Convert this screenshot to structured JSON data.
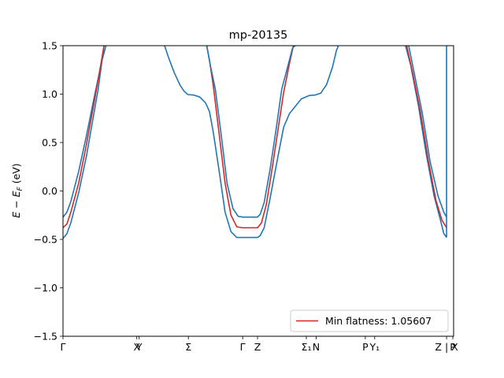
{
  "chart_data": {
    "type": "line",
    "title": "mp-20135",
    "ylabel": "E − E_F (eV)",
    "ylim": [
      -1.5,
      1.5
    ],
    "xlim": [
      0,
      1
    ],
    "yticks": [
      -1.5,
      -1.0,
      -0.5,
      0.0,
      0.5,
      1.0,
      1.5
    ],
    "ytick_labels": [
      "−1.5",
      "−1.0",
      "−0.5",
      "0.0",
      "0.5",
      "1.0",
      "1.5"
    ],
    "kpoints": [
      {
        "label": "Γ",
        "pos": 0.0
      },
      {
        "label": "X",
        "pos": 0.189
      },
      {
        "label": "Y",
        "pos": 0.195
      },
      {
        "label": "Σ",
        "pos": 0.321
      },
      {
        "label": "Γ",
        "pos": 0.46
      },
      {
        "label": "Z",
        "pos": 0.498
      },
      {
        "label": "Σ₁",
        "pos": 0.623
      },
      {
        "label": "N",
        "pos": 0.648
      },
      {
        "label": "P",
        "pos": 0.774
      },
      {
        "label": "Y₁",
        "pos": 0.798
      },
      {
        "label": "Z | X",
        "pos": 0.982
      },
      {
        "label": "P",
        "pos": 0.998
      }
    ],
    "grid": false,
    "legend": {
      "position": "lower-right",
      "entries": [
        {
          "name": "Min flatness: 1.05607",
          "color": "#d62728"
        }
      ]
    },
    "series": [
      {
        "color": "#1f77b4",
        "x": [
          0.0,
          0.01,
          0.02,
          0.04,
          0.06,
          0.08,
          0.09,
          0.1,
          0.105
        ],
        "y": [
          -0.49,
          -0.44,
          -0.33,
          -0.02,
          0.36,
          0.82,
          1.05,
          1.35,
          1.5
        ]
      },
      {
        "color": "#1f77b4",
        "x": [
          0.0,
          0.01,
          0.02,
          0.04,
          0.06,
          0.08,
          0.1,
          0.11,
          0.11
        ],
        "y": [
          -0.27,
          -0.22,
          -0.11,
          0.2,
          0.57,
          0.97,
          1.35,
          1.5,
          1.5
        ]
      },
      {
        "color": "#d62728",
        "x": [
          0.0,
          0.01,
          0.02,
          0.04,
          0.06,
          0.08,
          0.1,
          0.105
        ],
        "y": [
          -0.38,
          -0.34,
          -0.22,
          0.08,
          0.48,
          0.92,
          1.38,
          1.5
        ]
      },
      {
        "color": "#1f77b4",
        "x": [
          0.26,
          0.27,
          0.285,
          0.3,
          0.31,
          0.32,
          0.335,
          0.35,
          0.365,
          0.375,
          0.385,
          0.4,
          0.415,
          0.43,
          0.445,
          0.455,
          0.46,
          0.48,
          0.498,
          0.505,
          0.515,
          0.53,
          0.55,
          0.565,
          0.58,
          0.6,
          0.61,
          0.63,
          0.645,
          0.66,
          0.675,
          0.69,
          0.7,
          0.705
        ],
        "y": [
          1.5,
          1.38,
          1.22,
          1.09,
          1.03,
          0.995,
          0.99,
          0.97,
          0.91,
          0.82,
          0.6,
          0.2,
          -0.22,
          -0.42,
          -0.48,
          -0.48,
          -0.48,
          -0.48,
          -0.48,
          -0.46,
          -0.38,
          -0.08,
          0.35,
          0.66,
          0.8,
          0.9,
          0.95,
          0.985,
          0.99,
          1.01,
          1.1,
          1.28,
          1.45,
          1.5
        ]
      },
      {
        "color": "#d62728",
        "x": [
          0.368,
          0.375,
          0.385,
          0.4,
          0.415,
          0.43,
          0.445,
          0.46,
          0.48,
          0.498,
          0.508,
          0.52,
          0.535,
          0.55,
          0.565,
          0.58,
          0.59,
          0.59
        ],
        "y": [
          1.5,
          1.35,
          1.08,
          0.58,
          0.08,
          -0.25,
          -0.37,
          -0.38,
          -0.38,
          -0.38,
          -0.33,
          -0.15,
          0.22,
          0.62,
          1.02,
          1.32,
          1.5,
          1.5
        ]
      },
      {
        "color": "#1f77b4",
        "x": [
          0.368,
          0.378,
          0.39,
          0.405,
          0.42,
          0.435,
          0.448,
          0.46,
          0.48,
          0.498,
          0.505,
          0.515,
          0.53,
          0.545,
          0.56,
          0.575,
          0.588,
          0.595
        ],
        "y": [
          1.5,
          1.28,
          1.05,
          0.58,
          0.08,
          -0.18,
          -0.26,
          -0.27,
          -0.27,
          -0.27,
          -0.24,
          -0.12,
          0.22,
          0.62,
          1.05,
          1.28,
          1.48,
          1.5
        ]
      },
      {
        "color": "#1f77b4",
        "x": [
          0.877,
          0.89,
          0.91,
          0.93,
          0.95,
          0.965,
          0.975,
          0.982
        ],
        "y": [
          1.5,
          1.3,
          0.88,
          0.38,
          -0.05,
          -0.28,
          -0.44,
          -0.48
        ]
      },
      {
        "color": "#d62728",
        "x": [
          0.88,
          0.895,
          0.915,
          0.935,
          0.955,
          0.97,
          0.982
        ],
        "y": [
          1.5,
          1.22,
          0.82,
          0.32,
          -0.1,
          -0.3,
          -0.38
        ]
      },
      {
        "color": "#1f77b4",
        "x": [
          0.885,
          0.9,
          0.92,
          0.94,
          0.96,
          0.975,
          0.982
        ],
        "y": [
          1.5,
          1.2,
          0.8,
          0.3,
          -0.05,
          -0.22,
          -0.27
        ]
      },
      {
        "color": "#1f77b4",
        "x": [
          0.982,
          0.982
        ],
        "y": [
          -0.48,
          1.5
        ]
      }
    ]
  }
}
